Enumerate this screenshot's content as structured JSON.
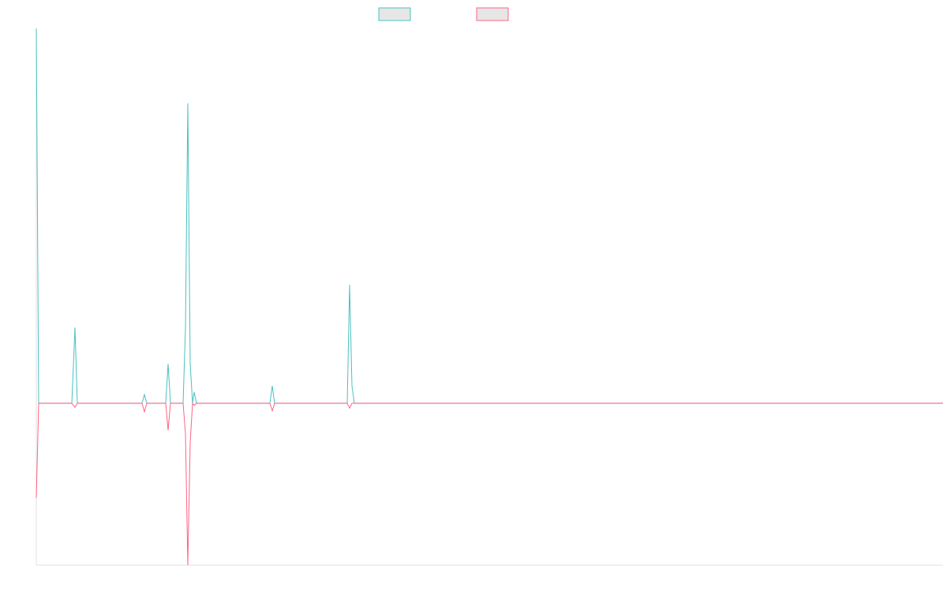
{
  "chart_data": {
    "type": "line",
    "x": [
      0,
      3,
      45,
      49,
      52,
      134,
      137,
      140,
      164,
      167,
      170,
      186,
      189,
      192,
      195,
      198,
      200,
      203,
      296,
      299,
      302,
      394,
      397,
      400,
      403,
      1149
    ],
    "series": [
      {
        "color": "#4bc0c0",
        "values": [
          100,
          0,
          0,
          20.2,
          0,
          0,
          2.3,
          0,
          0,
          10.5,
          0,
          0,
          20,
          80,
          10.5,
          0,
          3,
          0,
          0,
          4.6,
          0,
          0,
          31.6,
          4.6,
          0,
          0
        ]
      },
      {
        "color": "#ff6384",
        "values": [
          -25.3,
          0,
          0,
          -1.1,
          0,
          0,
          -2.3,
          0,
          0,
          -7.2,
          0,
          0,
          -8,
          -43.2,
          -10.5,
          0,
          -0.6,
          0,
          0,
          -2,
          0,
          0,
          -1.3,
          0,
          0,
          0
        ]
      }
    ],
    "xlim": [
      0,
      1149
    ],
    "ylim": [
      -43.2,
      100
    ]
  }
}
